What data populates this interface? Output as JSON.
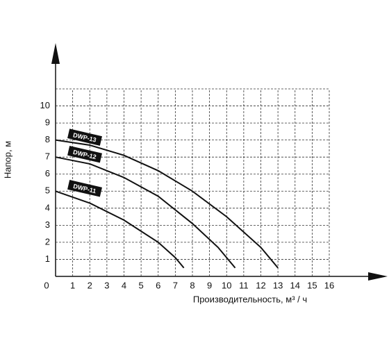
{
  "chart_data": {
    "type": "line",
    "x_label": "Производительность, м³ / ч",
    "y_label": "Напор, м",
    "xlim": [
      0,
      16
    ],
    "ylim": [
      0,
      11
    ],
    "xticks": [
      0,
      1,
      2,
      3,
      4,
      5,
      6,
      7,
      8,
      9,
      10,
      11,
      12,
      13,
      14,
      15,
      16
    ],
    "yticks": [
      1,
      2,
      3,
      4,
      5,
      6,
      7,
      8,
      9,
      10
    ],
    "grid": true,
    "series": [
      {
        "name": "DWP-13",
        "color": "#111111",
        "x": [
          0,
          2,
          4,
          6,
          8,
          10,
          12,
          13
        ],
        "values": [
          8,
          7.7,
          7.1,
          6.2,
          5.0,
          3.5,
          1.7,
          0.5
        ]
      },
      {
        "name": "DWP-12",
        "color": "#111111",
        "x": [
          0,
          2,
          4,
          6,
          8,
          9.5,
          10.5
        ],
        "values": [
          7,
          6.6,
          5.8,
          4.7,
          3.1,
          1.7,
          0.5
        ]
      },
      {
        "name": "DWP-11",
        "color": "#111111",
        "x": [
          0,
          2,
          4,
          6,
          7,
          7.5
        ],
        "values": [
          5,
          4.3,
          3.3,
          2.0,
          1.1,
          0.5
        ]
      }
    ]
  }
}
